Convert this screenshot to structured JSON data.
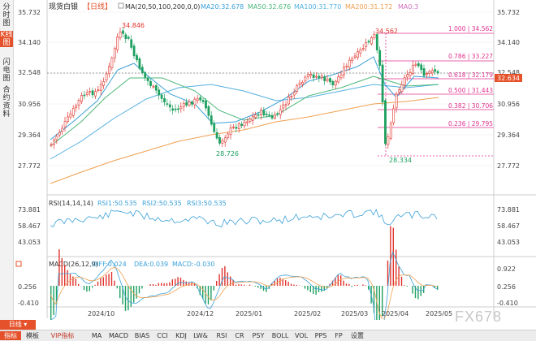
{
  "sidebar": {
    "tabs": [
      {
        "label": "分时图",
        "active": false
      },
      {
        "label": "K线图",
        "active": true
      },
      {
        "label": "闪电图",
        "active": false
      },
      {
        "label": "合约资料",
        "active": false
      }
    ]
  },
  "header": {
    "symbol": "现货白银",
    "period": "【日线】",
    "ma_label": "MA(20,50,100,200,0,0)",
    "ma_values": [
      {
        "label": "MA20:32.678",
        "color": "#3aa0d8"
      },
      {
        "label": "MA50:32.676",
        "color": "#4cb87a"
      },
      {
        "label": "MA100:31.770",
        "color": "#55b0e0"
      },
      {
        "label": "MA200:31.172",
        "color": "#f0a050"
      },
      {
        "label": "MA0:3",
        "color": "#d070c0"
      }
    ]
  },
  "price_axis": {
    "labels": [
      "35.732",
      "34.140",
      "32.548",
      "30.956",
      "29.364",
      "27.772"
    ]
  },
  "current_price": "32.634",
  "price_annotations": {
    "high1": "34.846",
    "low1": "28.726",
    "high2": "34.562",
    "low2": "28.334"
  },
  "fib_levels": [
    "1.000 | 34.562",
    "0.786 | 33.227",
    "0.618 | 32.179",
    "0.500 | 31.443",
    "0.382 | 30.706",
    "0.236 | 29.795"
  ],
  "rsi": {
    "label": "RSI(14,14,14)",
    "values": [
      "RSI1:50.535",
      "RSI2:50.535",
      "RSI3:50.535"
    ],
    "axis": [
      "73.881",
      "58.467",
      "43.053"
    ]
  },
  "macd": {
    "label": "MACD(26,12,9)",
    "diff": "DIFF:0.024",
    "dea": "DEA:0.039",
    "macd": "MACD:-0.030",
    "axis": [
      "0.922",
      "0.256",
      "-0.410"
    ]
  },
  "date_axis": [
    "2024/10",
    "2024/12",
    "2025/01",
    "2025/02",
    "2025/03",
    "2025/04",
    "2025/05"
  ],
  "bottom": {
    "period_button": "日线",
    "toolbar": [
      "指标",
      "模板",
      "VIP指标",
      "MA",
      "MACD",
      "BIAS",
      "CCI",
      "KDJ",
      "LW&",
      "RSI",
      "CR",
      "PSY",
      "BOLL",
      "VOL",
      "PPS",
      "FP",
      "设置"
    ]
  },
  "watermark": "FX678",
  "colors": {
    "up": "#e0332b",
    "down": "#1ea060",
    "accent": "#e5512a",
    "fib": "#e0338f"
  }
}
